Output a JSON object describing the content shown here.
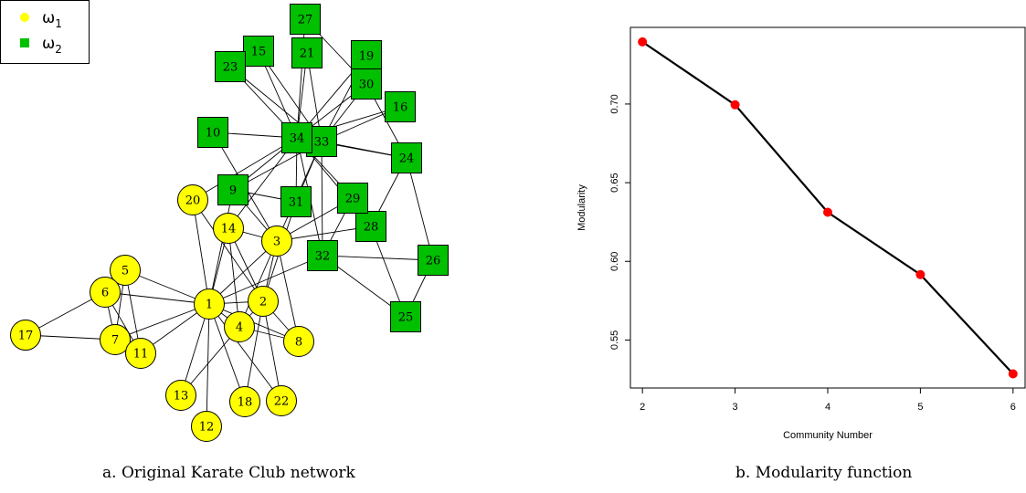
{
  "captions": {
    "a": "a. Original Karate Club network",
    "b": "b. Modularity function"
  },
  "legend": [
    {
      "symbol": "ω",
      "sub": "1",
      "shape": "circle",
      "color": "#ffff00"
    },
    {
      "symbol": "ω",
      "sub": "2",
      "shape": "square",
      "color": "#00c000"
    }
  ],
  "network": {
    "community_colors": {
      "1": "#ffff00",
      "2": "#00c000"
    },
    "nodes": [
      {
        "id": 1,
        "community": 1
      },
      {
        "id": 2,
        "community": 1
      },
      {
        "id": 3,
        "community": 1
      },
      {
        "id": 4,
        "community": 1
      },
      {
        "id": 5,
        "community": 1
      },
      {
        "id": 6,
        "community": 1
      },
      {
        "id": 7,
        "community": 1
      },
      {
        "id": 8,
        "community": 1
      },
      {
        "id": 9,
        "community": 2
      },
      {
        "id": 10,
        "community": 2
      },
      {
        "id": 11,
        "community": 1
      },
      {
        "id": 12,
        "community": 1
      },
      {
        "id": 13,
        "community": 1
      },
      {
        "id": 14,
        "community": 1
      },
      {
        "id": 15,
        "community": 2
      },
      {
        "id": 16,
        "community": 2
      },
      {
        "id": 17,
        "community": 1
      },
      {
        "id": 18,
        "community": 1
      },
      {
        "id": 19,
        "community": 2
      },
      {
        "id": 20,
        "community": 1
      },
      {
        "id": 21,
        "community": 2
      },
      {
        "id": 22,
        "community": 1
      },
      {
        "id": 23,
        "community": 2
      },
      {
        "id": 24,
        "community": 2
      },
      {
        "id": 25,
        "community": 2
      },
      {
        "id": 26,
        "community": 2
      },
      {
        "id": 27,
        "community": 2
      },
      {
        "id": 28,
        "community": 2
      },
      {
        "id": 29,
        "community": 2
      },
      {
        "id": 30,
        "community": 2
      },
      {
        "id": 31,
        "community": 2
      },
      {
        "id": 32,
        "community": 2
      },
      {
        "id": 33,
        "community": 2
      },
      {
        "id": 34,
        "community": 2
      }
    ],
    "edges": [
      [
        1,
        2
      ],
      [
        1,
        3
      ],
      [
        1,
        4
      ],
      [
        1,
        5
      ],
      [
        1,
        6
      ],
      [
        1,
        7
      ],
      [
        1,
        8
      ],
      [
        1,
        9
      ],
      [
        1,
        11
      ],
      [
        1,
        12
      ],
      [
        1,
        13
      ],
      [
        1,
        14
      ],
      [
        1,
        18
      ],
      [
        1,
        20
      ],
      [
        1,
        22
      ],
      [
        1,
        32
      ],
      [
        2,
        3
      ],
      [
        2,
        4
      ],
      [
        2,
        8
      ],
      [
        2,
        14
      ],
      [
        2,
        18
      ],
      [
        2,
        20
      ],
      [
        2,
        22
      ],
      [
        2,
        31
      ],
      [
        3,
        4
      ],
      [
        3,
        8
      ],
      [
        3,
        9
      ],
      [
        3,
        10
      ],
      [
        3,
        14
      ],
      [
        3,
        28
      ],
      [
        3,
        29
      ],
      [
        3,
        33
      ],
      [
        4,
        8
      ],
      [
        4,
        13
      ],
      [
        4,
        14
      ],
      [
        5,
        7
      ],
      [
        5,
        11
      ],
      [
        6,
        7
      ],
      [
        6,
        11
      ],
      [
        6,
        17
      ],
      [
        7,
        17
      ],
      [
        9,
        31
      ],
      [
        9,
        33
      ],
      [
        9,
        34
      ],
      [
        10,
        34
      ],
      [
        14,
        34
      ],
      [
        15,
        33
      ],
      [
        15,
        34
      ],
      [
        16,
        33
      ],
      [
        16,
        34
      ],
      [
        19,
        33
      ],
      [
        19,
        34
      ],
      [
        20,
        34
      ],
      [
        21,
        33
      ],
      [
        21,
        34
      ],
      [
        23,
        33
      ],
      [
        23,
        34
      ],
      [
        24,
        26
      ],
      [
        24,
        28
      ],
      [
        24,
        30
      ],
      [
        24,
        33
      ],
      [
        24,
        34
      ],
      [
        25,
        26
      ],
      [
        25,
        28
      ],
      [
        25,
        32
      ],
      [
        26,
        32
      ],
      [
        27,
        30
      ],
      [
        27,
        34
      ],
      [
        28,
        34
      ],
      [
        29,
        32
      ],
      [
        29,
        34
      ],
      [
        30,
        33
      ],
      [
        30,
        34
      ],
      [
        31,
        33
      ],
      [
        31,
        34
      ],
      [
        32,
        33
      ],
      [
        32,
        34
      ],
      [
        33,
        34
      ]
    ]
  },
  "chart_data": {
    "type": "line",
    "title": "",
    "xlabel": "Community Number",
    "ylabel": "Modularity",
    "x": [
      2,
      3,
      4,
      5,
      6
    ],
    "y": [
      0.7395,
      0.6995,
      0.6312,
      0.5916,
      0.5285
    ],
    "xlim": [
      1.87,
      6.13
    ],
    "ylim": [
      0.5195,
      0.7487
    ],
    "xticks": [
      2,
      3,
      4,
      5,
      6
    ],
    "yticks": [
      0.55,
      0.6,
      0.65,
      0.7
    ],
    "ytick_labels": [
      "0.55",
      "0.60",
      "0.65",
      "0.70"
    ],
    "line_color": "#000000",
    "point_color": "#ff0000"
  }
}
